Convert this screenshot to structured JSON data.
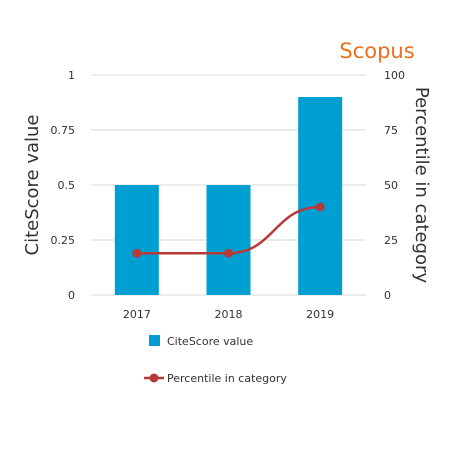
{
  "brand": {
    "text": "Scopus",
    "color": "#e9711c"
  },
  "colors": {
    "bar": "#009fd1",
    "line": "#b73a3a",
    "grid": "#d9d9d9",
    "text": "#333333"
  },
  "chart_data": {
    "type": "bar",
    "categories": [
      "2017",
      "2018",
      "2019"
    ],
    "series": [
      {
        "name": "CiteScore value",
        "type": "bar",
        "axis": "left",
        "values": [
          0.5,
          0.5,
          0.9
        ]
      },
      {
        "name": "Percentile in category",
        "type": "line",
        "axis": "right",
        "values": [
          19,
          19,
          40
        ]
      }
    ],
    "ylabel": "CiteScore value",
    "y2label": "Percentile in category",
    "ylim": [
      0,
      1
    ],
    "y2lim": [
      0,
      100
    ],
    "yticks": [
      "0",
      "0.25",
      "0.5",
      "0.75",
      "1"
    ],
    "y2ticks": [
      "0",
      "25",
      "50",
      "75",
      "100"
    ],
    "grid": true,
    "legend": "bottom"
  }
}
